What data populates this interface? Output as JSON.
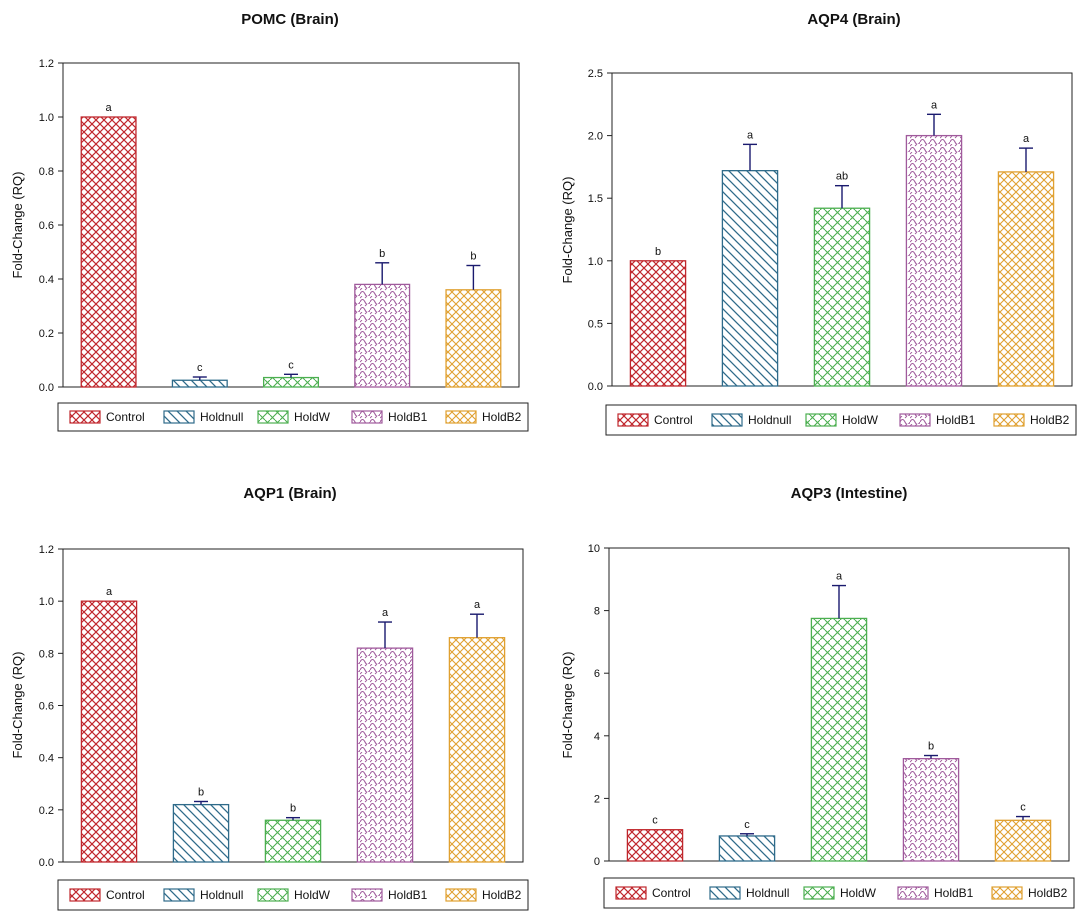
{
  "colors": {
    "Control": "#c0272d",
    "Holdnull": "#2f6b8a",
    "HoldW": "#4caf50",
    "HoldB1": "#a05a9c",
    "HoldB2": "#e0a030",
    "error": "#1a1a6e"
  },
  "chart_data": [
    {
      "type": "bar",
      "title": "POMC (Brain)",
      "ylabel": "Fold-Change (RQ)",
      "xlabel": "",
      "ylim": [
        0,
        1.2
      ],
      "yticks": [
        0,
        0.2,
        0.4,
        0.6,
        0.8,
        1.0,
        1.2
      ],
      "ytick_labels": [
        "0.0",
        "0.2",
        "0.4",
        "0.6",
        "0.8",
        "1.0",
        "1.2"
      ],
      "categories": [
        "Control",
        "Holdnull",
        "HoldW",
        "HoldB1",
        "HoldB2"
      ],
      "values": [
        1.0,
        0.025,
        0.035,
        0.38,
        0.36
      ],
      "errors": [
        0.0,
        0.012,
        0.012,
        0.08,
        0.09
      ],
      "letters": [
        "a",
        "c",
        "c",
        "b",
        "b"
      ],
      "legend": [
        "Control",
        "Holdnull",
        "HoldW",
        "HoldB1",
        "HoldB2"
      ]
    },
    {
      "type": "bar",
      "title": "AQP4 (Brain)",
      "ylabel": "Fold-Change (RQ)",
      "xlabel": "",
      "ylim": [
        0,
        2.5
      ],
      "yticks": [
        0,
        0.5,
        1.0,
        1.5,
        2.0,
        2.5
      ],
      "ytick_labels": [
        "0.0",
        "0.5",
        "1.0",
        "1.5",
        "2.0",
        "2.5"
      ],
      "categories": [
        "Control",
        "Holdnull",
        "HoldW",
        "HoldB1",
        "HoldB2"
      ],
      "values": [
        1.0,
        1.72,
        1.42,
        2.0,
        1.71
      ],
      "errors": [
        0.0,
        0.21,
        0.18,
        0.17,
        0.19
      ],
      "letters": [
        "b",
        "a",
        "ab",
        "a",
        "a"
      ],
      "legend": [
        "Control",
        "Holdnull",
        "HoldW",
        "HoldB1",
        "HoldB2"
      ]
    },
    {
      "type": "bar",
      "title": "AQP1 (Brain)",
      "ylabel": "Fold-Change (RQ)",
      "xlabel": "",
      "ylim": [
        0,
        1.2
      ],
      "yticks": [
        0,
        0.2,
        0.4,
        0.6,
        0.8,
        1.0,
        1.2
      ],
      "ytick_labels": [
        "0.0",
        "0.2",
        "0.4",
        "0.6",
        "0.8",
        "1.0",
        "1.2"
      ],
      "categories": [
        "Control",
        "Holdnull",
        "HoldW",
        "HoldB1",
        "HoldB2"
      ],
      "values": [
        1.0,
        0.22,
        0.16,
        0.82,
        0.86
      ],
      "errors": [
        0.0,
        0.012,
        0.01,
        0.1,
        0.09
      ],
      "letters": [
        "a",
        "b",
        "b",
        "a",
        "a"
      ],
      "legend": [
        "Control",
        "Holdnull",
        "HoldW",
        "HoldB1",
        "HoldB2"
      ]
    },
    {
      "type": "bar",
      "title": "AQP3 (Intestine)",
      "ylabel": "Fold-Change (RQ)",
      "xlabel": "",
      "ylim": [
        0,
        10
      ],
      "yticks": [
        0,
        2,
        4,
        6,
        8,
        10
      ],
      "ytick_labels": [
        "0",
        "2",
        "4",
        "6",
        "8",
        "10"
      ],
      "categories": [
        "Control",
        "Holdnull",
        "HoldW",
        "HoldB1",
        "HoldB2"
      ],
      "values": [
        1.0,
        0.8,
        7.75,
        3.27,
        1.3
      ],
      "errors": [
        0.0,
        0.07,
        1.05,
        0.1,
        0.12
      ],
      "letters": [
        "c",
        "c",
        "a",
        "b",
        "c"
      ],
      "legend": [
        "Control",
        "Holdnull",
        "HoldW",
        "HoldB1",
        "HoldB2"
      ]
    }
  ]
}
